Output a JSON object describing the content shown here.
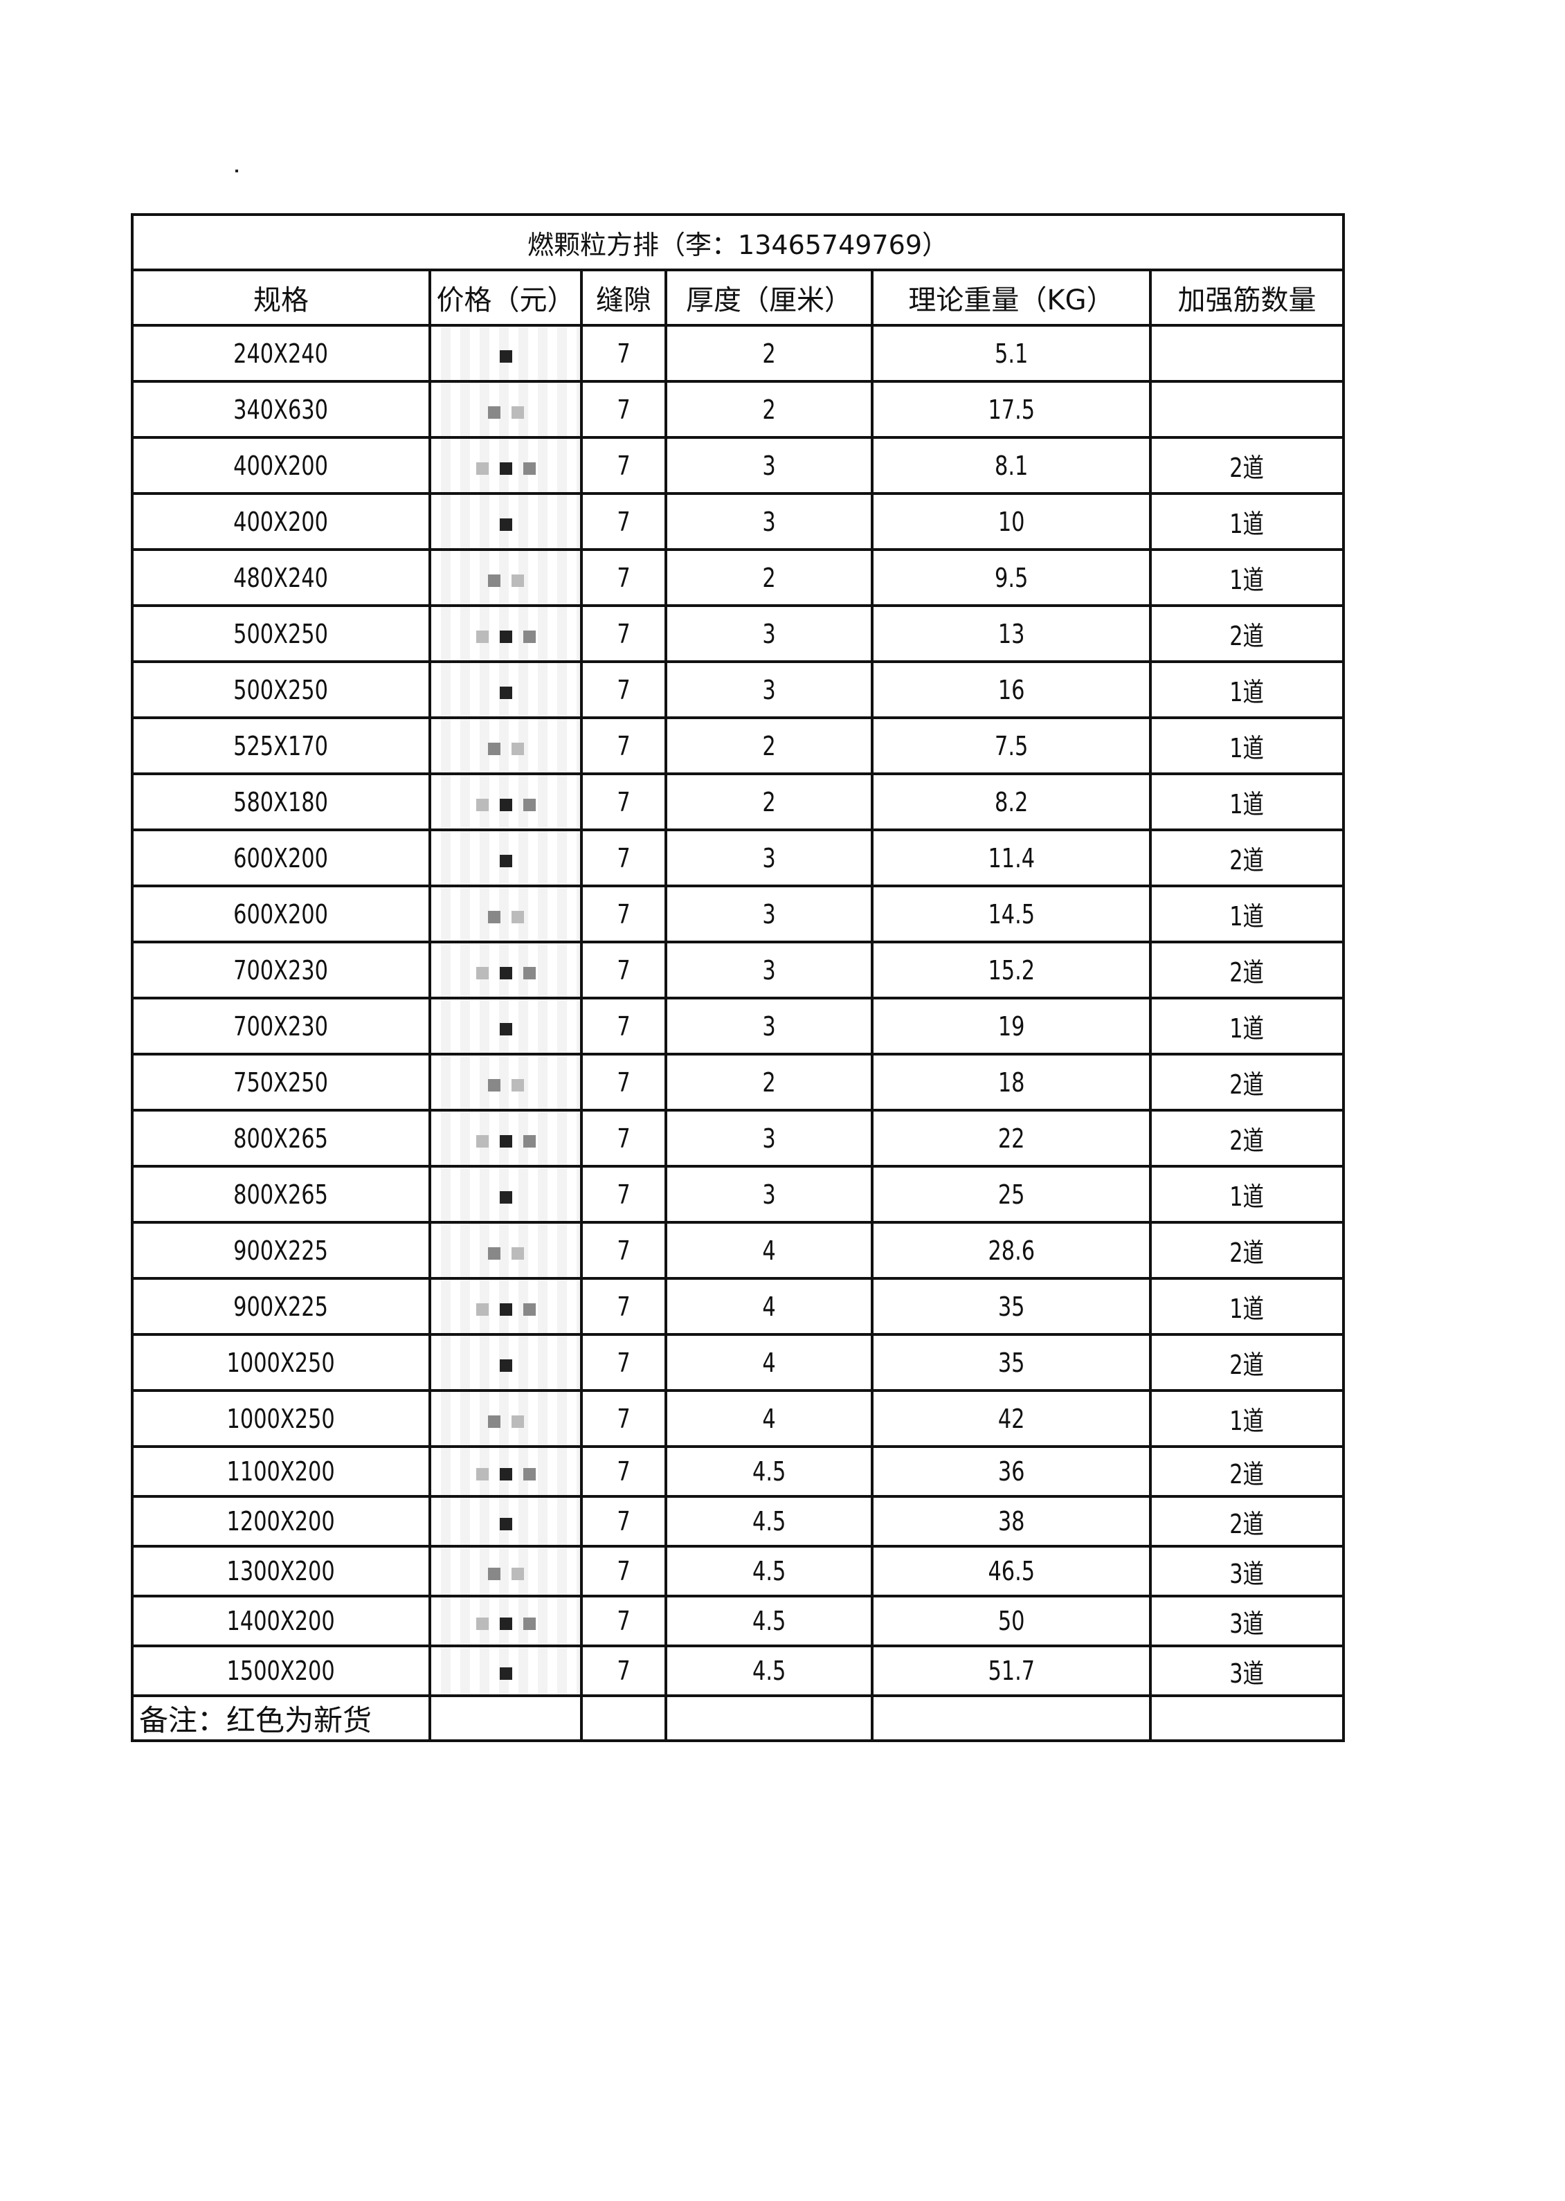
{
  "title": "燃颗粒方排（李：13465749769）",
  "columns": [
    "规格",
    "价格（元）",
    "缝隙",
    "厚度（厘米）",
    "理论重量（KG）",
    "加强筋数量"
  ],
  "rows": [
    {
      "spec": "240X240",
      "gap": "7",
      "thick": "2",
      "weight": "5.1",
      "ribs": ""
    },
    {
      "spec": "340X630",
      "gap": "7",
      "thick": "2",
      "weight": "17.5",
      "ribs": ""
    },
    {
      "spec": "400X200",
      "gap": "7",
      "thick": "3",
      "weight": "8.1",
      "ribs": "2道"
    },
    {
      "spec": "400X200",
      "gap": "7",
      "thick": "3",
      "weight": "10",
      "ribs": "1道"
    },
    {
      "spec": "480X240",
      "gap": "7",
      "thick": "2",
      "weight": "9.5",
      "ribs": "1道"
    },
    {
      "spec": "500X250",
      "gap": "7",
      "thick": "3",
      "weight": "13",
      "ribs": "2道"
    },
    {
      "spec": "500X250",
      "gap": "7",
      "thick": "3",
      "weight": "16",
      "ribs": "1道"
    },
    {
      "spec": "525X170",
      "gap": "7",
      "thick": "2",
      "weight": "7.5",
      "ribs": "1道"
    },
    {
      "spec": "580X180",
      "gap": "7",
      "thick": "2",
      "weight": "8.2",
      "ribs": "1道"
    },
    {
      "spec": "600X200",
      "gap": "7",
      "thick": "3",
      "weight": "11.4",
      "ribs": "2道"
    },
    {
      "spec": "600X200",
      "gap": "7",
      "thick": "3",
      "weight": "14.5",
      "ribs": "1道"
    },
    {
      "spec": "700X230",
      "gap": "7",
      "thick": "3",
      "weight": "15.2",
      "ribs": "2道"
    },
    {
      "spec": "700X230",
      "gap": "7",
      "thick": "3",
      "weight": "19",
      "ribs": "1道"
    },
    {
      "spec": "750X250",
      "gap": "7",
      "thick": "2",
      "weight": "18",
      "ribs": "2道"
    },
    {
      "spec": "800X265",
      "gap": "7",
      "thick": "3",
      "weight": "22",
      "ribs": "2道"
    },
    {
      "spec": "800X265",
      "gap": "7",
      "thick": "3",
      "weight": "25",
      "ribs": "1道"
    },
    {
      "spec": "900X225",
      "gap": "7",
      "thick": "4",
      "weight": "28.6",
      "ribs": "2道"
    },
    {
      "spec": "900X225",
      "gap": "7",
      "thick": "4",
      "weight": "35",
      "ribs": "1道"
    },
    {
      "spec": "1000X250",
      "gap": "7",
      "thick": "4",
      "weight": "35",
      "ribs": "2道"
    },
    {
      "spec": "1000X250",
      "gap": "7",
      "thick": "4",
      "weight": "42",
      "ribs": "1道"
    },
    {
      "spec": "1100X200",
      "gap": "7",
      "thick": "4.5",
      "weight": "36",
      "ribs": "2道"
    },
    {
      "spec": "1200X200",
      "gap": "7",
      "thick": "4.5",
      "weight": "38",
      "ribs": "2道"
    },
    {
      "spec": "1300X200",
      "gap": "7",
      "thick": "4.5",
      "weight": "46.5",
      "ribs": "3道"
    },
    {
      "spec": "1400X200",
      "gap": "7",
      "thick": "4.5",
      "weight": "50",
      "ribs": "3道"
    },
    {
      "spec": "1500X200",
      "gap": "7",
      "thick": "4.5",
      "weight": "51.7",
      "ribs": "3道"
    }
  ],
  "note": "备注：红色为新货"
}
